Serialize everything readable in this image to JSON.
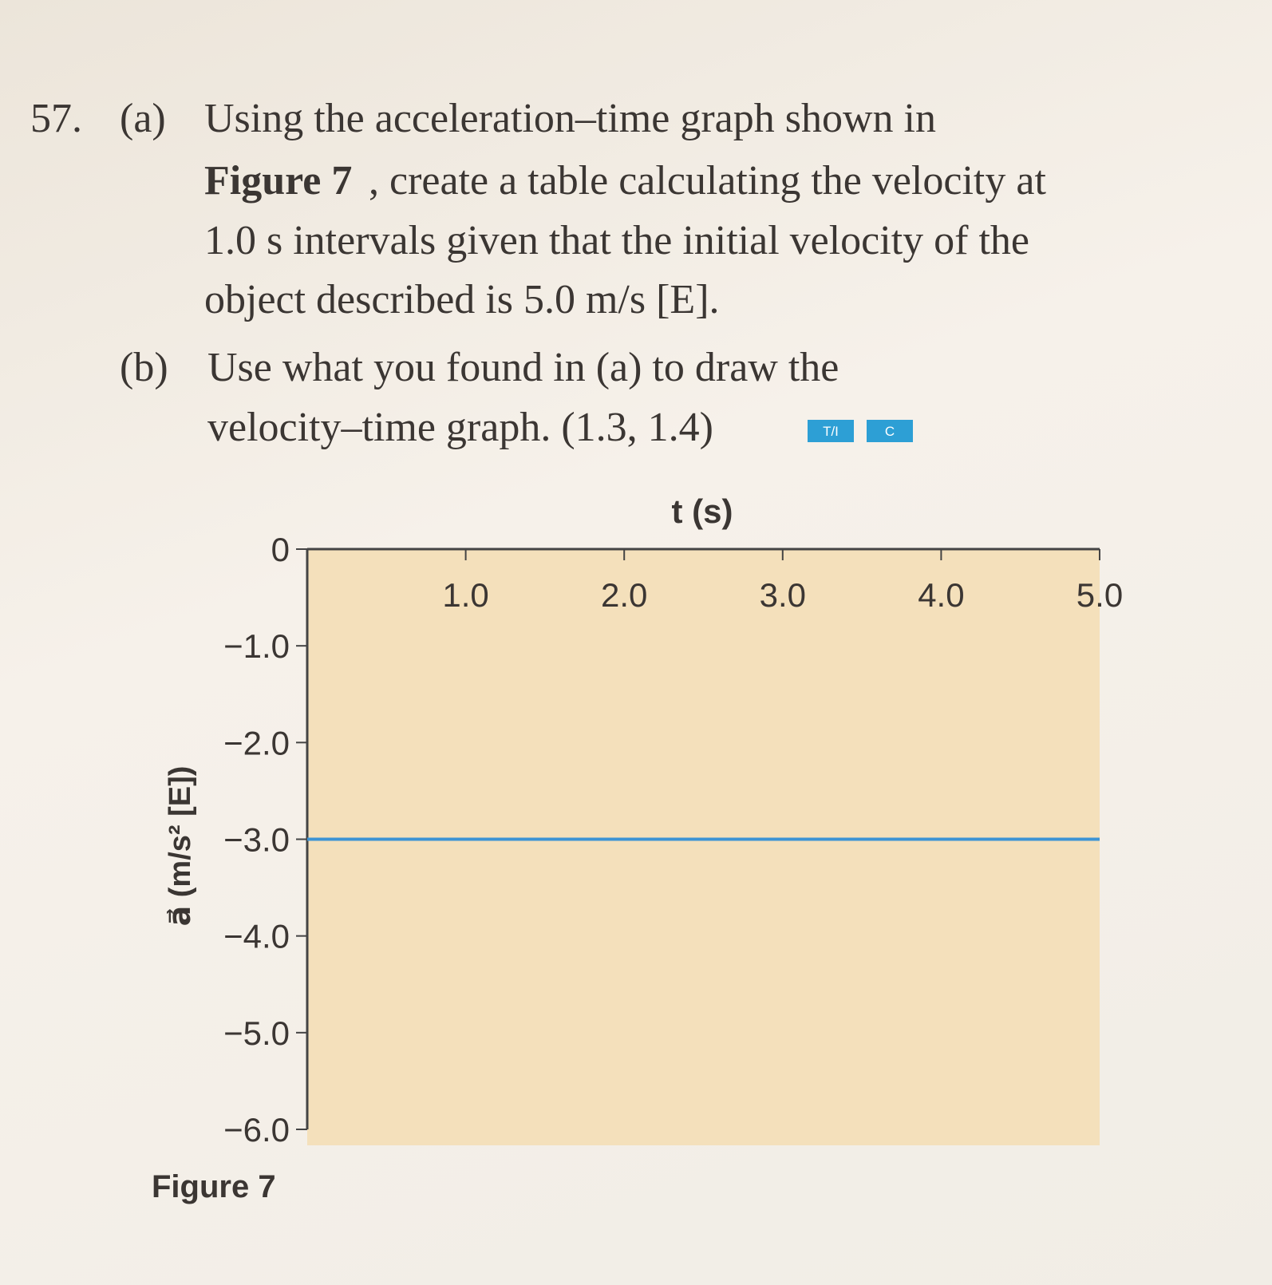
{
  "question": {
    "number": "57.",
    "part_a": {
      "label": "(a)",
      "line1": "Using the acceleration–time graph shown in",
      "figure_ref": "Figure 7",
      "line2": ", create a table calculating the velocity at",
      "line3": "1.0 s intervals given that the initial velocity of the",
      "line4": "object described is 5.0 m/s [E]."
    },
    "part_b": {
      "label": "(b)",
      "line1": "Use what you found in (a) to draw the",
      "line2": "velocity–time graph. (1.3, 1.4)"
    },
    "badges": [
      "T/I",
      "C"
    ]
  },
  "chart_data": {
    "type": "line",
    "caption": "Figure 7",
    "x_label": "t (s)",
    "y_label": "a⃗ (m/s² [E])",
    "x": [
      0,
      5
    ],
    "values": [
      -3,
      -3
    ],
    "color": "#3d94d4",
    "area_color": "#f4e0bb",
    "xlim": [
      0,
      5
    ],
    "xticks": [
      {
        "value": 1,
        "label": "1.0"
      },
      {
        "value": 2,
        "label": "2.0"
      },
      {
        "value": 3,
        "label": "3.0"
      },
      {
        "value": 4,
        "label": "4.0"
      },
      {
        "value": 5,
        "label": "5.0"
      }
    ],
    "ylim": [
      -6,
      0
    ],
    "yticks": [
      0,
      {
        "value": -1,
        "label": "−1.0"
      },
      {
        "value": -2,
        "label": "−2.0"
      },
      {
        "value": -3,
        "label": "−3.0"
      },
      {
        "value": -4,
        "label": "−4.0"
      },
      {
        "value": -5,
        "label": "−5.0"
      },
      {
        "value": -6,
        "label": "−6.0"
      }
    ]
  }
}
